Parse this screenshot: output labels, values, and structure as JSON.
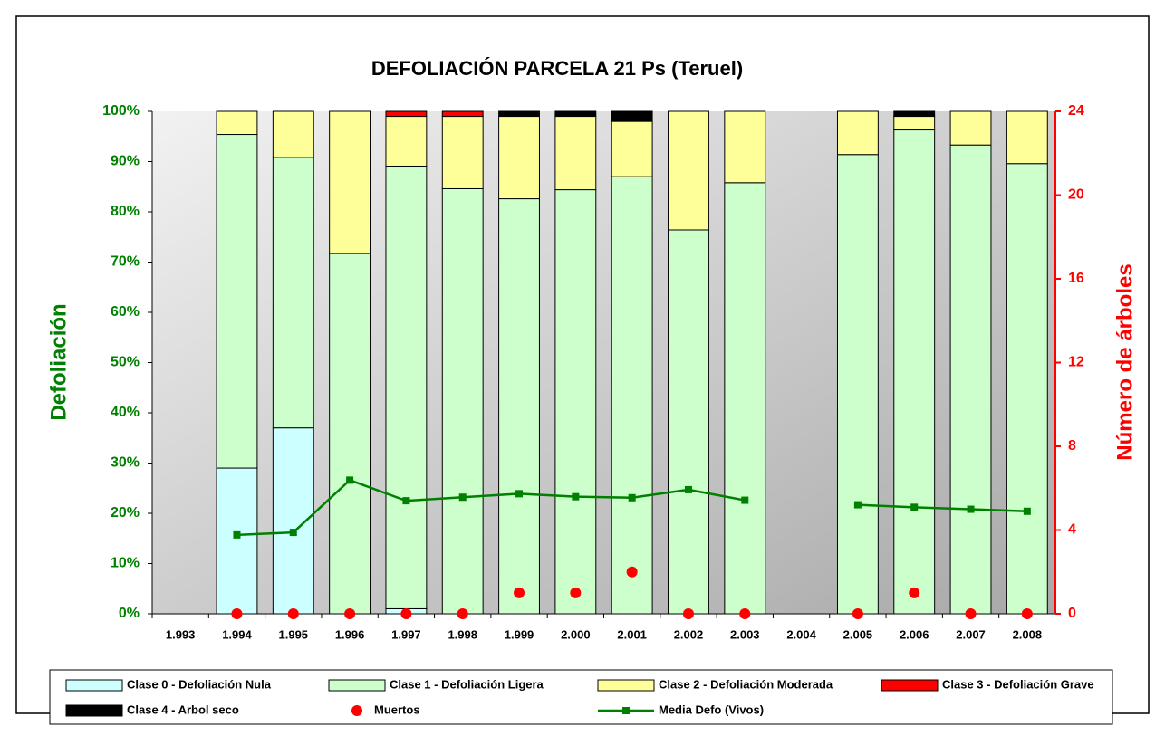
{
  "chart_data": {
    "type": "bar",
    "stacked": true,
    "title": "DEFOLIACIÓN PARCELA 21 Ps (Teruel)",
    "y_label": "Defoliación",
    "y2_label": "Número de árboles",
    "categories": [
      "1.993",
      "1.994",
      "1.995",
      "1.996",
      "1.997",
      "1.998",
      "1.999",
      "2.000",
      "2.001",
      "2.002",
      "2.003",
      "2.004",
      "2.005",
      "2.006",
      "2.007",
      "2.008"
    ],
    "ylim": [
      0,
      100
    ],
    "yticks": [
      {
        "value": 0,
        "label": "0%"
      },
      {
        "value": 10,
        "label": "10%"
      },
      {
        "value": 20,
        "label": "20%"
      },
      {
        "value": 30,
        "label": "30%"
      },
      {
        "value": 40,
        "label": "40%"
      },
      {
        "value": 50,
        "label": "50%"
      },
      {
        "value": 60,
        "label": "60%"
      },
      {
        "value": 70,
        "label": "70%"
      },
      {
        "value": 80,
        "label": "80%"
      },
      {
        "value": 90,
        "label": "90%"
      },
      {
        "value": 100,
        "label": "100%"
      }
    ],
    "y2lim": [
      0,
      24
    ],
    "y2ticks": [
      0,
      4,
      8,
      12,
      16,
      20,
      24
    ],
    "grid": false,
    "series": [
      {
        "name": "Clase 0 - Defoliación Nula",
        "kind": "bar",
        "color": "#ccffff",
        "values": [
          null,
          29,
          37,
          0,
          1,
          0,
          0,
          0,
          0,
          0,
          0,
          null,
          0,
          0,
          0,
          0
        ]
      },
      {
        "name": "Clase 1 - Defoliación Ligera",
        "kind": "bar",
        "color": "#ccffcc",
        "values": [
          null,
          66.4,
          53.8,
          71.7,
          88.1,
          84.6,
          82.6,
          84.4,
          87,
          76.4,
          85.8,
          null,
          91.4,
          96.3,
          93.3,
          89.6
        ]
      },
      {
        "name": "Clase 2 - Defoliación Moderada",
        "kind": "bar",
        "color": "#ffff99",
        "values": [
          null,
          4.6,
          9.2,
          28.3,
          9.9,
          14.4,
          16.4,
          14.6,
          11,
          23.6,
          14.2,
          null,
          8.6,
          2.7,
          6.7,
          10.4
        ]
      },
      {
        "name": "Clase 3 - Defoliación Grave",
        "kind": "bar",
        "color": "#ff0000",
        "values": [
          null,
          0,
          0,
          0,
          1,
          1,
          0,
          0,
          0,
          0,
          0,
          null,
          0,
          0,
          0,
          0
        ]
      },
      {
        "name": "Clase 4 - Arbol seco",
        "kind": "bar",
        "color": "#000000",
        "values": [
          null,
          0,
          0,
          0,
          0,
          0,
          1,
          1,
          2,
          0,
          0,
          null,
          0,
          1,
          0,
          0
        ]
      },
      {
        "name": "Muertos",
        "kind": "scatter",
        "axis": "y2",
        "color": "#ff0000",
        "values": [
          null,
          0,
          0,
          0,
          0,
          0,
          1,
          1,
          2,
          0,
          0,
          null,
          0,
          1,
          0,
          0
        ]
      },
      {
        "name": "Media Defo (Vivos)",
        "kind": "line",
        "color": "#008000",
        "values": [
          null,
          15.7,
          16.2,
          26.6,
          22.5,
          23.2,
          23.9,
          23.3,
          23.1,
          24.7,
          22.6,
          null,
          21.7,
          21.2,
          20.8,
          20.4
        ]
      }
    ]
  }
}
